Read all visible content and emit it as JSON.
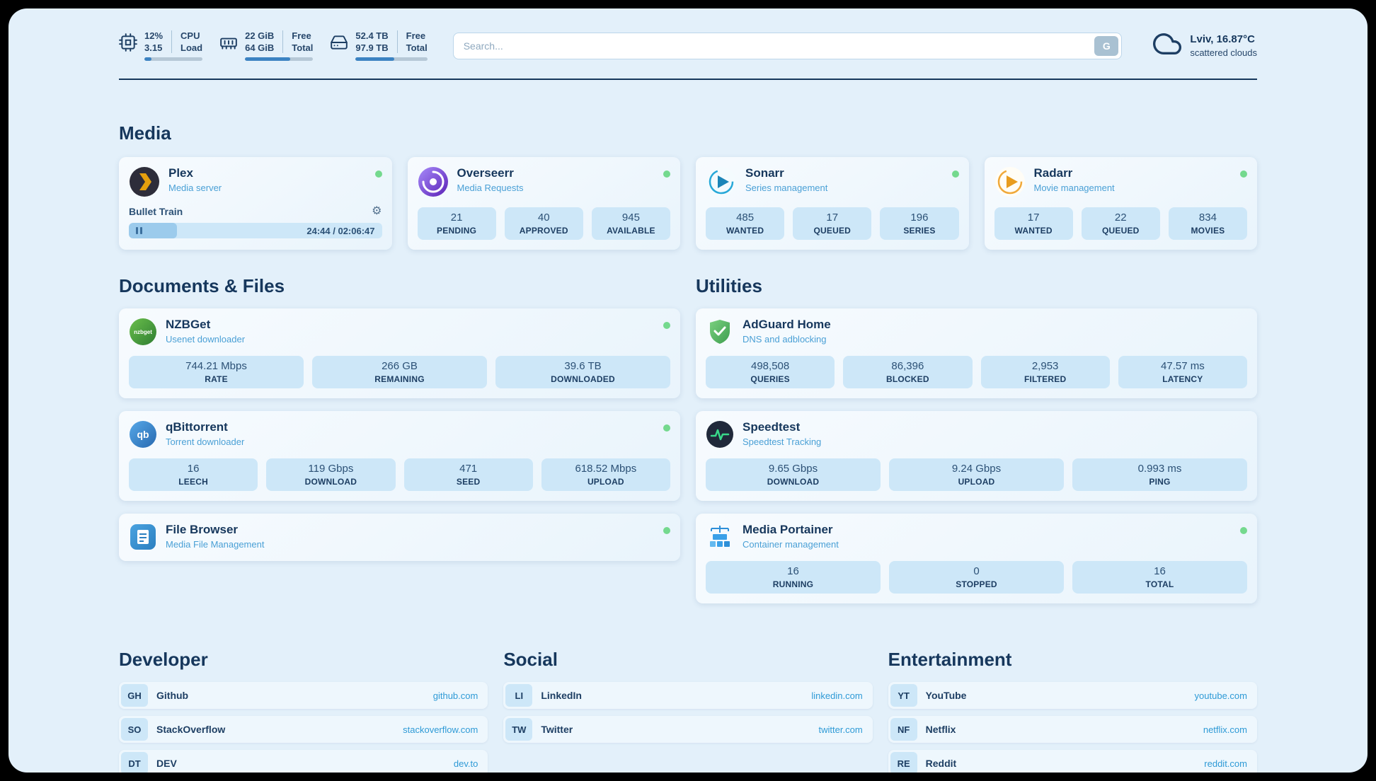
{
  "icons": {
    "gear": "⚙"
  },
  "topbar": {
    "cpu": {
      "value1": "12%",
      "value2": "3.15",
      "label1": "CPU",
      "label2": "Load",
      "progress": 12
    },
    "ram": {
      "value1": "22 GiB",
      "value2": "64 GiB",
      "label1": "Free",
      "label2": "Total",
      "progress": 66
    },
    "disk": {
      "value1": "52.4 TB",
      "value2": "97.9 TB",
      "label1": "Free",
      "label2": "Total",
      "progress": 54
    },
    "search": {
      "placeholder": "Search...",
      "button_label": "G"
    },
    "weather": {
      "location": "Lviv, 16.87°C",
      "condition": "scattered clouds"
    }
  },
  "media": {
    "title": "Media",
    "plex": {
      "name": "Plex",
      "subtitle": "Media server",
      "now_playing": "Bullet Train",
      "time": "24:44 / 02:06:47",
      "progress": 19
    },
    "overseerr": {
      "name": "Overseerr",
      "subtitle": "Media Requests",
      "stats": [
        {
          "value": "21",
          "label": "PENDING"
        },
        {
          "value": "40",
          "label": "APPROVED"
        },
        {
          "value": "945",
          "label": "AVAILABLE"
        }
      ]
    },
    "sonarr": {
      "name": "Sonarr",
      "subtitle": "Series management",
      "stats": [
        {
          "value": "485",
          "label": "WANTED"
        },
        {
          "value": "17",
          "label": "QUEUED"
        },
        {
          "value": "196",
          "label": "SERIES"
        }
      ]
    },
    "radarr": {
      "name": "Radarr",
      "subtitle": "Movie management",
      "stats": [
        {
          "value": "17",
          "label": "WANTED"
        },
        {
          "value": "22",
          "label": "QUEUED"
        },
        {
          "value": "834",
          "label": "MOVIES"
        }
      ]
    }
  },
  "documents": {
    "title": "Documents & Files",
    "nzbget": {
      "name": "NZBGet",
      "subtitle": "Usenet downloader",
      "stats": [
        {
          "value": "744.21 Mbps",
          "label": "RATE"
        },
        {
          "value": "266 GB",
          "label": "REMAINING"
        },
        {
          "value": "39.6 TB",
          "label": "DOWNLOADED"
        }
      ]
    },
    "qbittorrent": {
      "name": "qBittorrent",
      "subtitle": "Torrent downloader",
      "stats": [
        {
          "value": "16",
          "label": "LEECH"
        },
        {
          "value": "119 Gbps",
          "label": "DOWNLOAD"
        },
        {
          "value": "471",
          "label": "SEED"
        },
        {
          "value": "618.52 Mbps",
          "label": "UPLOAD"
        }
      ]
    },
    "filebrowser": {
      "name": "File Browser",
      "subtitle": "Media File Management"
    }
  },
  "utilities": {
    "title": "Utilities",
    "adguard": {
      "name": "AdGuard Home",
      "subtitle": "DNS and adblocking",
      "stats": [
        {
          "value": "498,508",
          "label": "QUERIES"
        },
        {
          "value": "86,396",
          "label": "BLOCKED"
        },
        {
          "value": "2,953",
          "label": "FILTERED"
        },
        {
          "value": "47.57 ms",
          "label": "LATENCY"
        }
      ]
    },
    "speedtest": {
      "name": "Speedtest",
      "subtitle": "Speedtest Tracking",
      "stats": [
        {
          "value": "9.65 Gbps",
          "label": "DOWNLOAD"
        },
        {
          "value": "9.24 Gbps",
          "label": "UPLOAD"
        },
        {
          "value": "0.993 ms",
          "label": "PING"
        }
      ]
    },
    "portainer": {
      "name": "Media Portainer",
      "subtitle": "Container management",
      "stats": [
        {
          "value": "16",
          "label": "RUNNING"
        },
        {
          "value": "0",
          "label": "STOPPED"
        },
        {
          "value": "16",
          "label": "TOTAL"
        }
      ]
    }
  },
  "bookmarks": {
    "developer": {
      "title": "Developer",
      "items": [
        {
          "abbr": "GH",
          "name": "Github",
          "url": "github.com"
        },
        {
          "abbr": "SO",
          "name": "StackOverflow",
          "url": "stackoverflow.com"
        },
        {
          "abbr": "DT",
          "name": "DEV",
          "url": "dev.to"
        }
      ]
    },
    "social": {
      "title": "Social",
      "items": [
        {
          "abbr": "LI",
          "name": "LinkedIn",
          "url": "linkedin.com"
        },
        {
          "abbr": "TW",
          "name": "Twitter",
          "url": "twitter.com"
        }
      ]
    },
    "entertainment": {
      "title": "Entertainment",
      "items": [
        {
          "abbr": "YT",
          "name": "YouTube",
          "url": "youtube.com"
        },
        {
          "abbr": "NF",
          "name": "Netflix",
          "url": "netflix.com"
        },
        {
          "abbr": "RE",
          "name": "Reddit",
          "url": "reddit.com"
        }
      ]
    }
  }
}
